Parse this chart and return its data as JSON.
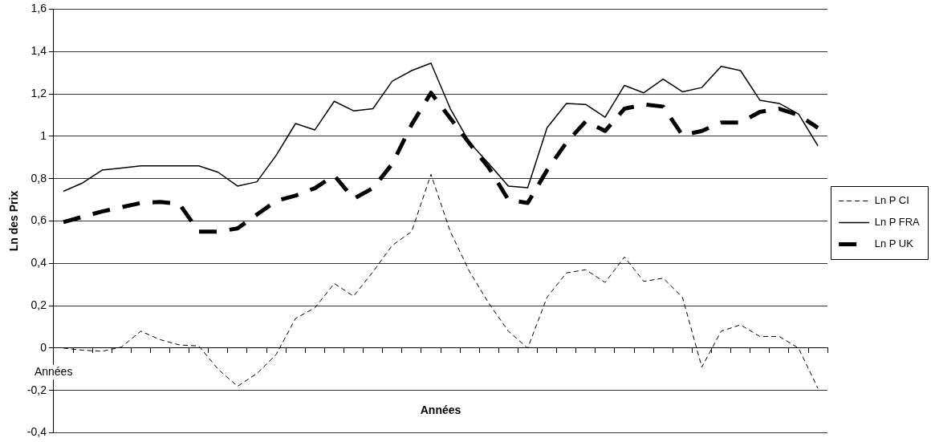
{
  "chart_data": {
    "type": "line",
    "xlabel": "Années",
    "ylabel": "Ln des Prix",
    "annotations": [
      "Années"
    ],
    "categories": [
      null,
      null,
      null,
      null,
      null,
      null,
      null,
      null,
      null,
      null,
      null,
      null,
      null,
      null,
      null,
      null,
      null,
      null,
      null,
      null,
      null,
      null,
      null,
      null,
      null,
      null,
      null,
      null,
      null,
      null,
      null,
      null,
      null,
      null,
      null,
      null,
      null,
      null,
      null,
      null
    ],
    "series": [
      {
        "name": "Ln P CI",
        "color": "#000000",
        "line_style": "dashed",
        "values": [
          0.0,
          -0.01,
          -0.015,
          0.005,
          0.08,
          0.04,
          0.015,
          0.01,
          -0.1,
          -0.18,
          -0.12,
          -0.03,
          0.14,
          0.19,
          0.305,
          0.245,
          0.36,
          0.485,
          0.55,
          0.82,
          0.55,
          0.36,
          0.21,
          0.08,
          0.0,
          0.24,
          0.355,
          0.37,
          0.31,
          0.43,
          0.315,
          0.33,
          0.24,
          -0.09,
          0.08,
          0.11,
          0.055,
          0.055,
          0.0,
          -0.19
        ]
      },
      {
        "name": "Ln P FRA",
        "color": "#000000",
        "line_style": "solid",
        "values": [
          0.74,
          0.78,
          0.84,
          0.85,
          0.86,
          0.86,
          0.86,
          0.86,
          0.83,
          0.765,
          0.785,
          0.91,
          1.06,
          1.03,
          1.165,
          1.12,
          1.13,
          1.26,
          1.31,
          1.345,
          1.13,
          0.97,
          0.87,
          0.765,
          0.757,
          1.04,
          1.155,
          1.15,
          1.09,
          1.24,
          1.205,
          1.27,
          1.21,
          1.23,
          1.33,
          1.31,
          1.17,
          1.155,
          1.105,
          0.955
        ]
      },
      {
        "name": "Ln P UK",
        "color": "#000000",
        "line_style": "dashed",
        "values": [
          0.595,
          0.62,
          0.645,
          0.665,
          0.685,
          0.69,
          0.68,
          0.55,
          0.55,
          0.565,
          0.63,
          0.695,
          0.72,
          0.755,
          0.815,
          0.705,
          0.755,
          0.87,
          1.055,
          1.205,
          1.085,
          0.965,
          0.85,
          0.7,
          0.685,
          0.84,
          0.97,
          1.07,
          1.025,
          1.13,
          1.15,
          1.14,
          1.005,
          1.025,
          1.065,
          1.065,
          1.115,
          1.13,
          1.1,
          1.04
        ]
      }
    ],
    "ylim": [
      -0.4,
      1.6
    ],
    "yticks": [
      {
        "value": -0.4,
        "label": "-0,4"
      },
      {
        "value": -0.2,
        "label": "-0,2"
      },
      {
        "value": 0,
        "label": "0"
      },
      {
        "value": 0.2,
        "label": "0,2"
      },
      {
        "value": 0.4,
        "label": "0,4"
      },
      {
        "value": 0.6,
        "label": "0,6"
      },
      {
        "value": 0.8,
        "label": "0,8"
      },
      {
        "value": 1,
        "label": "1"
      },
      {
        "value": 1.2,
        "label": "1,2"
      },
      {
        "value": 1.4,
        "label": "1,4"
      },
      {
        "value": 1.6,
        "label": "1,6"
      }
    ],
    "grid": "y",
    "legend": "right",
    "marker": "none"
  }
}
